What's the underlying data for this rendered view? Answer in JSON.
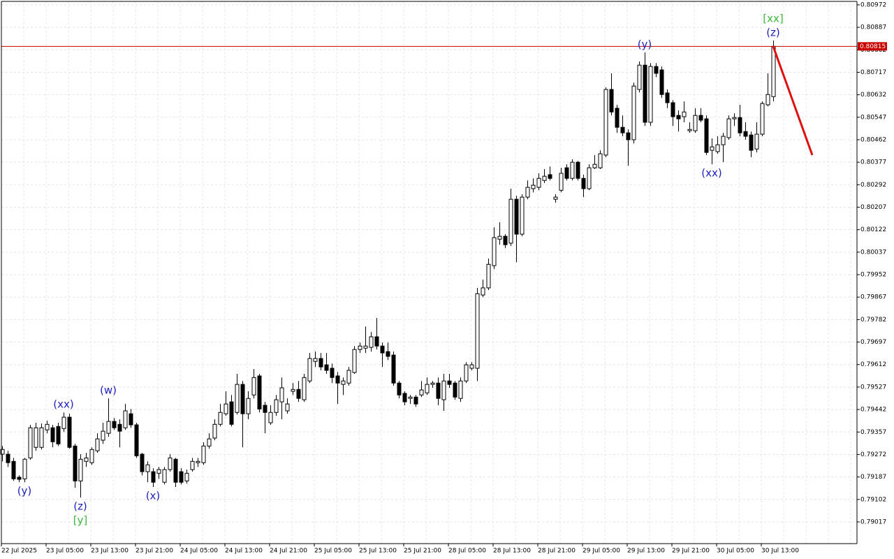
{
  "chart_data": {
    "type": "candlestick",
    "categories": [
      "22 Jul 2025",
      null,
      null,
      null,
      null,
      null,
      null,
      null,
      "23 Jul 05:00",
      null,
      null,
      null,
      null,
      null,
      null,
      null,
      "23 Jul 13:00",
      null,
      null,
      null,
      null,
      null,
      null,
      null,
      "23 Jul 21:00",
      null,
      null,
      null,
      null,
      null,
      null,
      null,
      "24 Jul 05:00",
      null,
      null,
      null,
      null,
      null,
      null,
      null,
      "24 Jul 13:00",
      null,
      null,
      null,
      null,
      null,
      null,
      null,
      "24 Jul 21:00",
      null,
      null,
      null,
      null,
      null,
      null,
      null,
      "25 Jul 05:00",
      null,
      null,
      null,
      null,
      null,
      null,
      null,
      "25 Jul 13:00",
      null,
      null,
      null,
      null,
      null,
      null,
      null,
      "25 Jul 21:00",
      null,
      null,
      null,
      null,
      null,
      null,
      null,
      "28 Jul 05:00",
      null,
      null,
      null,
      null,
      null,
      null,
      null,
      "28 Jul 13:00",
      null,
      null,
      null,
      null,
      null,
      null,
      null,
      "28 Jul 21:00",
      null,
      null,
      null,
      null,
      null,
      null,
      null,
      "29 Jul 05:00",
      null,
      null,
      null,
      null,
      null,
      null,
      null,
      "29 Jul 13:00",
      null,
      null,
      null,
      null,
      null,
      null,
      null,
      "29 Jul 21:00",
      null,
      null,
      null,
      null,
      null,
      null,
      null,
      "30 Jul 05:00",
      null,
      null,
      null,
      null,
      null,
      null,
      null,
      "30 Jul 13:00",
      null,
      null
    ],
    "open": [
      0.79273,
      0.79273,
      0.79246,
      0.79186,
      0.7918,
      0.79259,
      0.79299,
      0.79299,
      0.79365,
      0.79373,
      0.79378,
      0.7937,
      0.79413,
      0.79304,
      0.79172,
      0.79246,
      0.79241,
      0.79286,
      0.79326,
      0.79352,
      0.79397,
      0.79386,
      0.79373,
      0.79426,
      0.79384,
      0.79273,
      0.79207,
      0.79207,
      0.79201,
      0.79167,
      0.79215,
      0.79254,
      0.79207,
      0.79172,
      0.79215,
      0.79241,
      0.79241,
      0.79304,
      0.79334,
      0.79386,
      0.79426,
      0.79471,
      0.79431,
      0.79537,
      0.79426,
      0.79497,
      0.79569,
      0.79458,
      0.79392,
      0.79431,
      0.79471,
      0.79437,
      0.79511,
      0.79518,
      0.79479,
      0.7955,
      0.79624,
      0.79635,
      0.79611,
      0.79598,
      0.79569,
      0.79537,
      0.79542,
      0.79582,
      0.79669,
      0.79674,
      0.79677,
      0.79717,
      0.79682,
      0.79661,
      0.79648,
      0.79542,
      0.79503,
      0.79484,
      0.79489,
      0.79497,
      0.79505,
      0.79537,
      0.79542,
      0.79479,
      0.7955,
      0.79542,
      0.79484,
      0.7955,
      0.79598,
      0.79598,
      0.79875,
      0.79902,
      0.79986,
      0.80086,
      0.80097,
      0.80071,
      0.80237,
      0.80105,
      0.80245,
      0.80277,
      0.80282,
      0.80308,
      0.8033,
      0.80237,
      0.80271,
      0.80356,
      0.80316,
      0.80377,
      0.80316,
      0.80277,
      0.80356,
      0.80356,
      0.80404,
      0.80652,
      0.80581,
      0.80509,
      0.80488,
      0.80462,
      0.80652,
      0.80744,
      0.80528,
      0.80739,
      0.80726,
      0.80639,
      0.80602,
      0.80554,
      0.80549,
      0.80496,
      0.80496,
      0.80554,
      0.80541,
      0.80422,
      0.80417,
      0.80443,
      0.8047,
      0.80541,
      0.80546,
      0.80493,
      0.8048,
      0.80427,
      0.80483,
      0.80594,
      0.80625
    ],
    "high": [
      0.79304,
      0.79286,
      0.79259,
      0.79193,
      0.79259,
      0.79384,
      0.79392,
      0.79389,
      0.794,
      0.79384,
      0.79392,
      0.79431,
      0.79426,
      0.79312,
      0.79273,
      0.79278,
      0.79299,
      0.79352,
      0.79392,
      0.79484,
      0.7941,
      0.79405,
      0.79463,
      0.79444,
      0.79392,
      0.79278,
      0.79246,
      0.7922,
      0.79225,
      0.79225,
      0.79273,
      0.79259,
      0.7922,
      0.79215,
      0.79259,
      0.79259,
      0.79318,
      0.79352,
      0.79405,
      0.79463,
      0.79511,
      0.79497,
      0.79577,
      0.7955,
      0.79511,
      0.79595,
      0.79577,
      0.79471,
      0.79458,
      0.79497,
      0.79563,
      0.79484,
      0.79542,
      0.7955,
      0.79577,
      0.79656,
      0.79661,
      0.79656,
      0.79656,
      0.79616,
      0.79584,
      0.79563,
      0.79603,
      0.79682,
      0.79695,
      0.79756,
      0.79735,
      0.79788,
      0.79695,
      0.79695,
      0.79661,
      0.7955,
      0.79511,
      0.79497,
      0.79497,
      0.7955,
      0.79563,
      0.7955,
      0.79563,
      0.79577,
      0.79577,
      0.7955,
      0.79563,
      0.79621,
      0.79621,
      0.79902,
      0.79933,
      0.80013,
      0.80131,
      0.8015,
      0.80105,
      0.80277,
      0.8025,
      0.80256,
      0.80308,
      0.80316,
      0.80335,
      0.80351,
      0.80361,
      0.80256,
      0.80356,
      0.80369,
      0.80388,
      0.80382,
      0.8033,
      0.80369,
      0.80404,
      0.80422,
      0.8066,
      0.80713,
      0.80594,
      0.80554,
      0.80501,
      0.80678,
      0.80758,
      0.80792,
      0.80752,
      0.80752,
      0.80739,
      0.80652,
      0.80612,
      0.80573,
      0.80607,
      0.80528,
      0.80581,
      0.80581,
      0.80554,
      0.80467,
      0.80475,
      0.80488,
      0.80554,
      0.80562,
      0.80594,
      0.80528,
      0.80493,
      0.80528,
      0.80607,
      0.80713,
      0.80837
    ],
    "low": [
      0.79246,
      0.79225,
      0.79172,
      0.79167,
      0.79167,
      0.79252,
      0.79286,
      0.79291,
      0.79352,
      0.79299,
      0.79304,
      0.79357,
      0.79294,
      0.79146,
      0.79109,
      0.79225,
      0.79233,
      0.79278,
      0.79312,
      0.79339,
      0.79365,
      0.79299,
      0.79365,
      0.79373,
      0.79259,
      0.79193,
      0.79167,
      0.79149,
      0.7918,
      0.79159,
      0.79207,
      0.79149,
      0.79159,
      0.79162,
      0.79207,
      0.79225,
      0.79233,
      0.79294,
      0.79326,
      0.79378,
      0.79418,
      0.79378,
      0.79423,
      0.79299,
      0.79405,
      0.79484,
      0.79431,
      0.79352,
      0.79384,
      0.79418,
      0.79405,
      0.79426,
      0.79497,
      0.79471,
      0.79471,
      0.79542,
      0.79603,
      0.7959,
      0.79577,
      0.79542,
      0.79463,
      0.79497,
      0.79532,
      0.79577,
      0.79656,
      0.79656,
      0.79661,
      0.79669,
      0.79603,
      0.79629,
      0.79532,
      0.79484,
      0.79458,
      0.79463,
      0.79452,
      0.79489,
      0.79497,
      0.79524,
      0.79458,
      0.79437,
      0.79524,
      0.79479,
      0.79471,
      0.79542,
      0.7959,
      0.7955,
      0.79867,
      0.79894,
      0.79973,
      0.80065,
      0.80052,
      0.8006,
      0.79999,
      0.80097,
      0.80237,
      0.80263,
      0.80271,
      0.80298,
      0.80308,
      0.80224,
      0.80263,
      0.80308,
      0.80308,
      0.80308,
      0.80245,
      0.80271,
      0.80351,
      0.80351,
      0.80396,
      0.80554,
      0.80488,
      0.80475,
      0.80364,
      0.80448,
      0.80641,
      0.80514,
      0.80514,
      0.80699,
      0.8062,
      0.80581,
      0.80514,
      0.80493,
      0.80528,
      0.80488,
      0.80488,
      0.80528,
      0.80404,
      0.80369,
      0.80409,
      0.80377,
      0.80462,
      0.80514,
      0.80475,
      0.80462,
      0.80396,
      0.80414,
      0.80475,
      0.80588,
      0.80607
    ],
    "close": [
      0.79291,
      0.79241,
      0.7918,
      0.79178,
      0.79254,
      0.79373,
      0.79373,
      0.79373,
      0.79386,
      0.7932,
      0.79312,
      0.79413,
      0.79299,
      0.79172,
      0.79254,
      0.79259,
      0.79291,
      0.79331,
      0.7936,
      0.79397,
      0.79373,
      0.7936,
      0.79437,
      0.79384,
      0.79267,
      0.79207,
      0.79233,
      0.79167,
      0.79215,
      0.79215,
      0.79259,
      0.79167,
      0.79167,
      0.79201,
      0.79246,
      0.79246,
      0.79304,
      0.79331,
      0.79386,
      0.79431,
      0.79463,
      0.79386,
      0.79537,
      0.79426,
      0.79484,
      0.79563,
      0.79444,
      0.79431,
      0.79431,
      0.79479,
      0.79524,
      0.79463,
      0.79518,
      0.79484,
      0.79563,
      0.79635,
      0.79635,
      0.79603,
      0.7959,
      0.79563,
      0.79542,
      0.7955,
      0.7959,
      0.79669,
      0.79682,
      0.79682,
      0.79717,
      0.79682,
      0.79656,
      0.79643,
      0.79542,
      0.79497,
      0.79471,
      0.79489,
      0.79463,
      0.79516,
      0.79537,
      0.79542,
      0.79484,
      0.7955,
      0.79537,
      0.79489,
      0.7955,
      0.79611,
      0.79611,
      0.7988,
      0.79902,
      0.79991,
      0.80092,
      0.80097,
      0.80065,
      0.80237,
      0.80105,
      0.80245,
      0.80282,
      0.8029,
      0.80316,
      0.80324,
      0.80316,
      0.80245,
      0.80335,
      0.80316,
      0.80377,
      0.80316,
      0.80277,
      0.80356,
      0.80369,
      0.80409,
      0.80652,
      0.80567,
      0.80509,
      0.80488,
      0.80462,
      0.80665,
      0.80744,
      0.80528,
      0.80739,
      0.80713,
      0.80633,
      0.80602,
      0.80549,
      0.80541,
      0.80567,
      0.80501,
      0.80554,
      0.80536,
      0.80414,
      0.80435,
      0.80443,
      0.80475,
      0.80541,
      0.80546,
      0.80488,
      0.80475,
      0.80422,
      0.80483,
      0.80599,
      0.80633,
      0.80815
    ],
    "up_color": "#ffffff",
    "down_color": "#000000",
    "ylim": [
      0.78935,
      0.80985
    ],
    "yticks": [
      0.80972,
      0.80887,
      0.80802,
      0.80717,
      0.80632,
      0.80547,
      0.80462,
      0.80377,
      0.80292,
      0.80207,
      0.80122,
      0.80037,
      0.79952,
      0.79867,
      0.79782,
      0.79697,
      0.79612,
      0.79527,
      0.79442,
      0.79357,
      0.79272,
      0.79187,
      0.79102,
      0.79017
    ],
    "grid": true,
    "last_price": {
      "value": 0.80815,
      "color": "#c80000"
    },
    "forecast": {
      "color": "#e01010",
      "values": [
        0.80815,
        0.80404
      ]
    },
    "annotations": [
      {
        "text": "(y)",
        "index": 4,
        "position": "below",
        "color": "#1f1fbf"
      },
      {
        "text": "(xx)",
        "index": 11,
        "position": "above",
        "color": "#1f1fbf"
      },
      {
        "text": "(z)",
        "index": 14,
        "position": "below",
        "color": "#1f1fbf"
      },
      {
        "text": "[y]",
        "index": 14,
        "position": "below",
        "color": "#3cb83c"
      },
      {
        "text": "(w)",
        "index": 19,
        "position": "above",
        "color": "#1f1fbf"
      },
      {
        "text": "(x)",
        "index": 27,
        "position": "below",
        "color": "#1f1fbf"
      },
      {
        "text": "(y)",
        "index": 115,
        "position": "above",
        "color": "#1f1fbf"
      },
      {
        "text": "(xx)",
        "index": 127,
        "position": "below",
        "color": "#1f1fbf"
      },
      {
        "text": "(z)",
        "index": 138,
        "position": "above",
        "color": "#1f1fbf"
      },
      {
        "text": "[xx]",
        "index": 138,
        "position": "above",
        "color": "#3cb83c"
      }
    ]
  }
}
